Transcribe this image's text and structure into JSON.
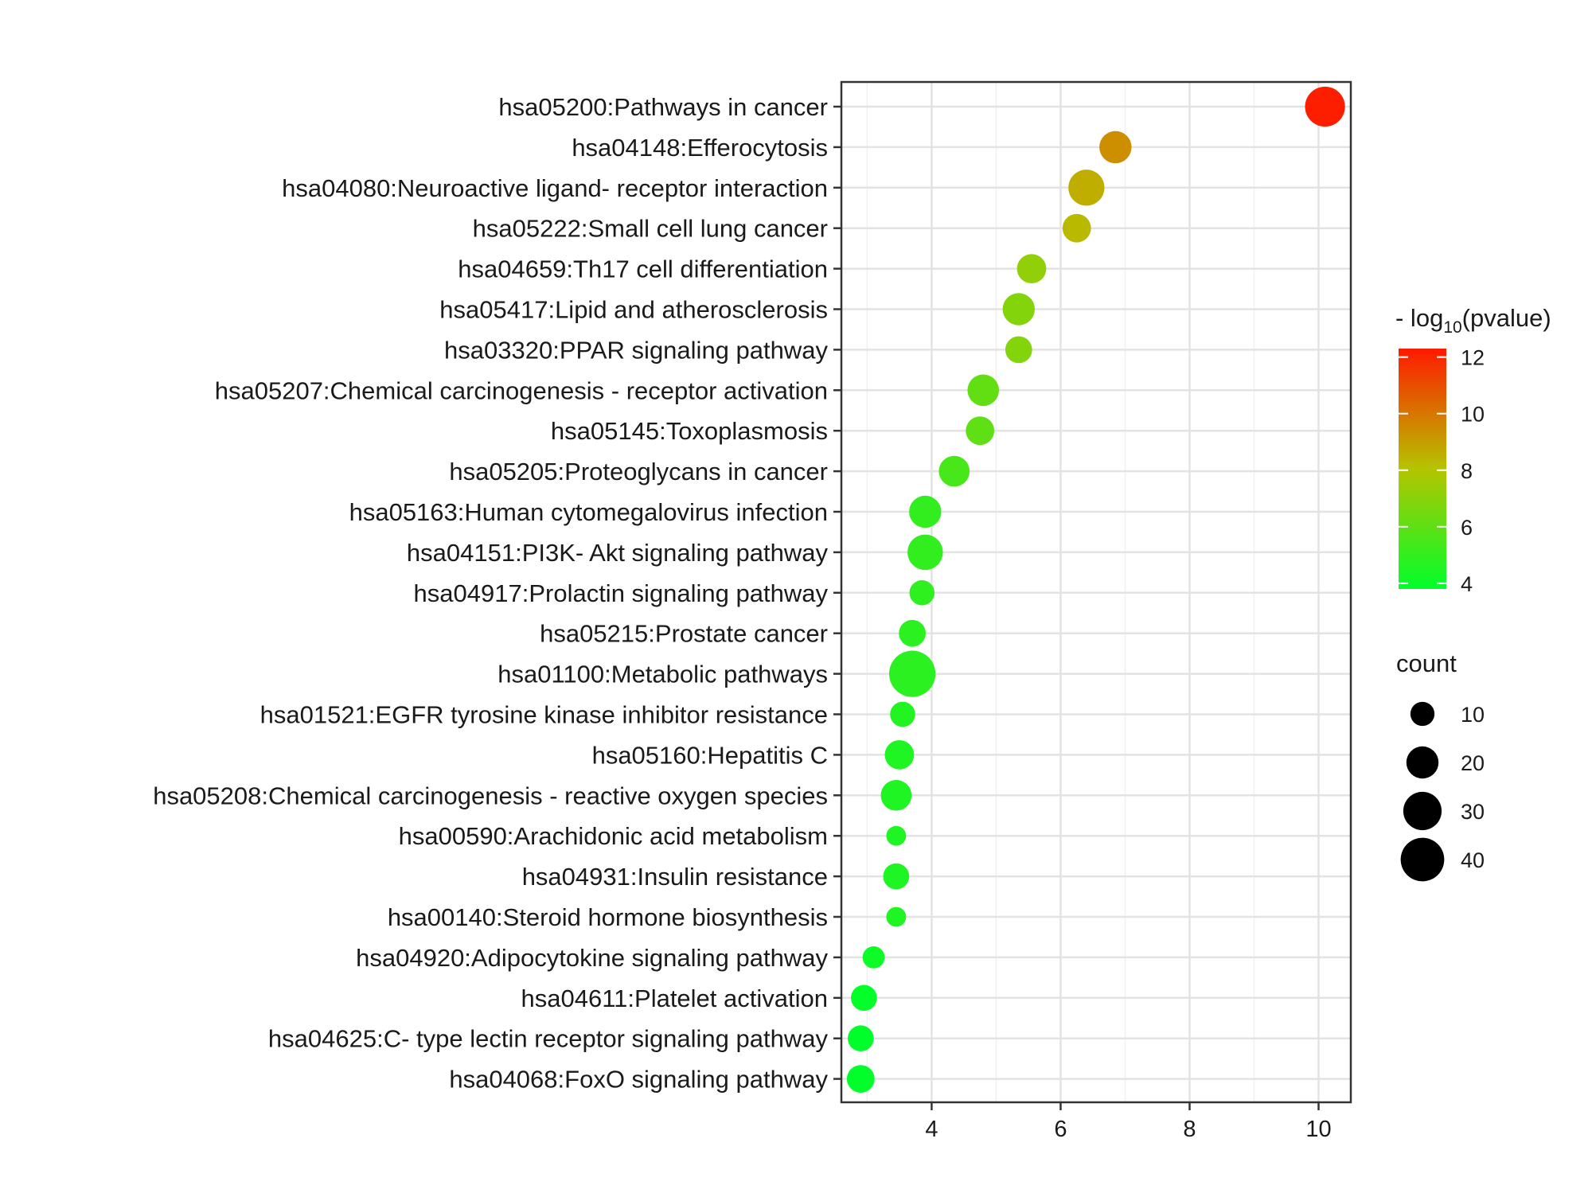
{
  "chart_data": {
    "type": "scatter",
    "title": "",
    "xlabel": "",
    "ylabel": "",
    "xlim": [
      2.6,
      10.5
    ],
    "x_ticks": [
      4,
      6,
      8,
      10
    ],
    "grid": true,
    "categories": [
      "hsa05200:Pathways in cancer",
      "hsa04148:Efferocytosis",
      "hsa04080:Neuroactive ligand- receptor interaction",
      "hsa05222:Small cell lung cancer",
      "hsa04659:Th17 cell differentiation",
      "hsa05417:Lipid and atherosclerosis",
      "hsa03320:PPAR signaling pathway",
      "hsa05207:Chemical carcinogenesis -  receptor activation",
      "hsa05145:Toxoplasmosis",
      "hsa05205:Proteoglycans in cancer",
      "hsa05163:Human cytomegalovirus infection",
      "hsa04151:PI3K- Akt signaling pathway",
      "hsa04917:Prolactin signaling pathway",
      "hsa05215:Prostate cancer",
      "hsa01100:Metabolic pathways",
      "hsa01521:EGFR tyrosine kinase inhibitor resistance",
      "hsa05160:Hepatitis C",
      "hsa05208:Chemical carcinogenesis -  reactive oxygen species",
      "hsa00590:Arachidonic acid metabolism",
      "hsa04931:Insulin resistance",
      "hsa00140:Steroid hormone biosynthesis",
      "hsa04920:Adipocytokine signaling pathway",
      "hsa04611:Platelet activation",
      "hsa04625:C- type lectin receptor signaling pathway",
      "hsa04068:FoxO signaling pathway"
    ],
    "x": [
      10.1,
      6.85,
      6.4,
      6.25,
      5.55,
      5.35,
      5.35,
      4.8,
      4.75,
      4.35,
      3.9,
      3.9,
      3.85,
      3.7,
      3.7,
      3.55,
      3.5,
      3.45,
      3.45,
      3.45,
      3.45,
      3.1,
      2.95,
      2.9,
      2.9
    ],
    "count": [
      33,
      20,
      26,
      15,
      16,
      20,
      13,
      19,
      15,
      18,
      20,
      25,
      11,
      13,
      46,
      11,
      16,
      18,
      6,
      12,
      6,
      8,
      12,
      12,
      14
    ],
    "neg_log10_pvalue": [
      12.2,
      9.4,
      8.6,
      8.3,
      7.2,
      6.9,
      6.9,
      6.1,
      6.0,
      5.5,
      5.0,
      5.0,
      4.9,
      4.8,
      4.8,
      4.6,
      4.5,
      4.5,
      4.5,
      4.5,
      4.5,
      4.1,
      3.9,
      3.8,
      3.8
    ],
    "color_legend": {
      "title_prefix": "- log",
      "title_sub": "10",
      "title_suffix": "(pvalue)",
      "ticks": [
        4,
        6,
        8,
        10,
        12
      ],
      "range": [
        3.8,
        12.3
      ],
      "low_color": "#00ff2a",
      "mid_color": "#b5c400",
      "high_color": "#ff1a00"
    },
    "size_legend": {
      "title": "count",
      "values": [
        10,
        20,
        30,
        40
      ]
    }
  }
}
